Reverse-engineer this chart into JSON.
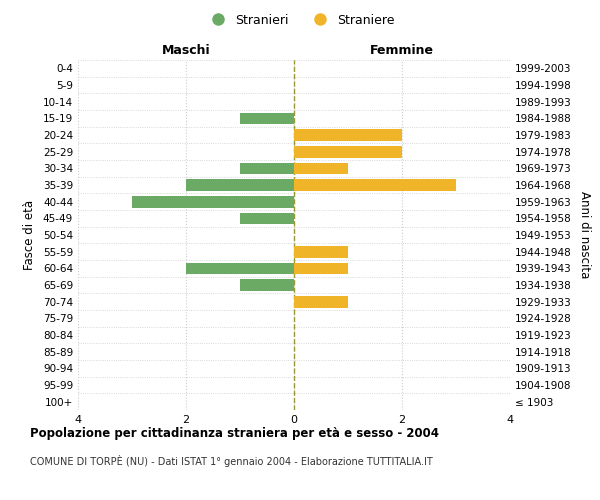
{
  "age_groups": [
    "100+",
    "95-99",
    "90-94",
    "85-89",
    "80-84",
    "75-79",
    "70-74",
    "65-69",
    "60-64",
    "55-59",
    "50-54",
    "45-49",
    "40-44",
    "35-39",
    "30-34",
    "25-29",
    "20-24",
    "15-19",
    "10-14",
    "5-9",
    "0-4"
  ],
  "birth_years": [
    "≤ 1903",
    "1904-1908",
    "1909-1913",
    "1914-1918",
    "1919-1923",
    "1924-1928",
    "1929-1933",
    "1934-1938",
    "1939-1943",
    "1944-1948",
    "1949-1953",
    "1954-1958",
    "1959-1963",
    "1964-1968",
    "1969-1973",
    "1974-1978",
    "1979-1983",
    "1984-1988",
    "1989-1993",
    "1994-1998",
    "1999-2003"
  ],
  "maschi": [
    0,
    0,
    0,
    0,
    0,
    0,
    0,
    1,
    2,
    0,
    0,
    1,
    3,
    2,
    1,
    0,
    0,
    1,
    0,
    0,
    0
  ],
  "femmine": [
    0,
    0,
    0,
    0,
    0,
    0,
    1,
    0,
    1,
    1,
    0,
    0,
    0,
    3,
    1,
    2,
    2,
    0,
    0,
    0,
    0
  ],
  "color_maschi": "#6aaa64",
  "color_femmine": "#f0b429",
  "title": "Popolazione per cittadinanza straniera per età e sesso - 2004",
  "subtitle": "COMUNE DI TORPÈ (NU) - Dati ISTAT 1° gennaio 2004 - Elaborazione TUTTITALIA.IT",
  "xlabel_left": "Maschi",
  "xlabel_right": "Femmine",
  "ylabel_left": "Fasce di età",
  "ylabel_right": "Anni di nascita",
  "legend_maschi": "Stranieri",
  "legend_femmine": "Straniere",
  "xlim": 4,
  "background_color": "#ffffff",
  "grid_color": "#cccccc",
  "bar_height": 0.7
}
